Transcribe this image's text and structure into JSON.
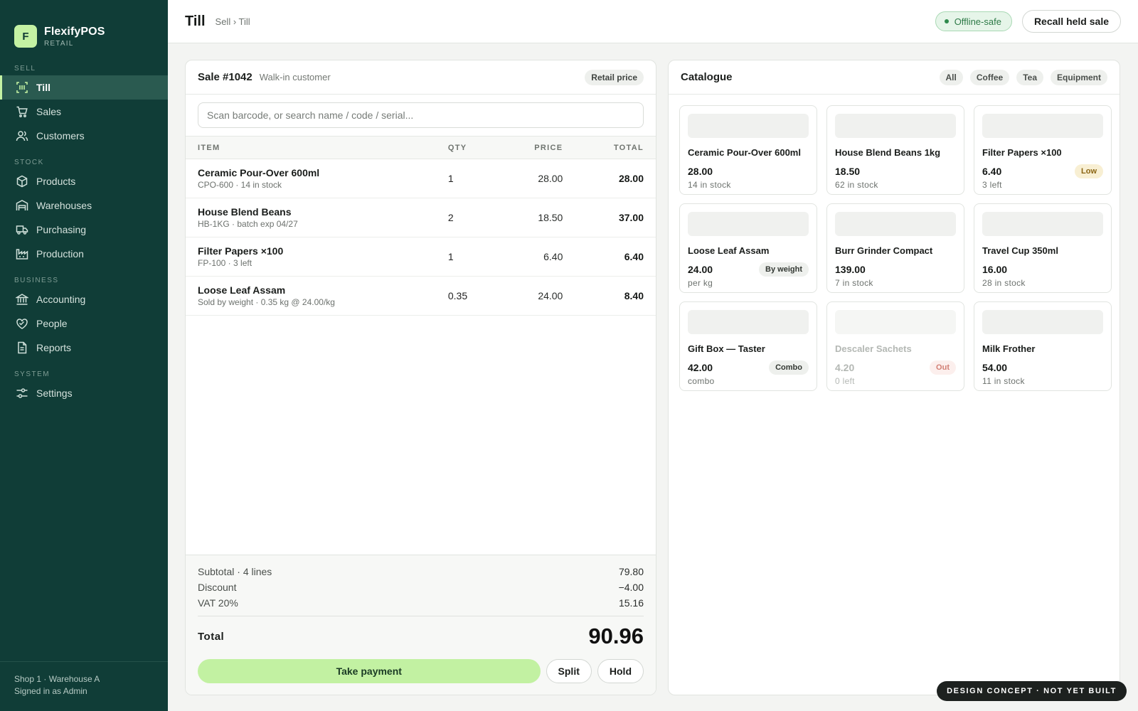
{
  "brand": {
    "initial": "F",
    "name": "FlexifyPOS",
    "sub": "RETAIL"
  },
  "sidebar": {
    "sections": [
      {
        "title": "SELL",
        "items": [
          {
            "label": "Till",
            "icon": "barcode-scan-icon",
            "active": true
          },
          {
            "label": "Sales",
            "icon": "cart-icon"
          },
          {
            "label": "Customers",
            "icon": "users-icon"
          }
        ]
      },
      {
        "title": "STOCK",
        "items": [
          {
            "label": "Products",
            "icon": "box-icon"
          },
          {
            "label": "Warehouses",
            "icon": "warehouse-icon"
          },
          {
            "label": "Purchasing",
            "icon": "truck-icon"
          },
          {
            "label": "Production",
            "icon": "factory-icon"
          }
        ]
      },
      {
        "title": "BUSINESS",
        "items": [
          {
            "label": "Accounting",
            "icon": "bank-icon"
          },
          {
            "label": "People",
            "icon": "handshake-icon"
          },
          {
            "label": "Reports",
            "icon": "report-icon"
          }
        ]
      },
      {
        "title": "SYSTEM",
        "items": [
          {
            "label": "Settings",
            "icon": "sliders-icon"
          }
        ]
      }
    ],
    "footer": {
      "location": "Shop 1 · Warehouse A",
      "user": "Signed in as Admin"
    }
  },
  "header": {
    "title": "Till",
    "breadcrumb": "Sell › Till",
    "status": "Offline-safe",
    "recall_label": "Recall held sale"
  },
  "sale": {
    "number": "Sale #1042",
    "customer": "Walk-in customer",
    "price_list": "Retail price",
    "search_placeholder": "Scan barcode, or search name / code / serial...",
    "columns": {
      "item": "ITEM",
      "qty": "QTY",
      "price": "PRICE",
      "total": "TOTAL"
    },
    "lines": [
      {
        "name": "Ceramic Pour-Over 600ml",
        "sub": "CPO-600 · 14 in stock",
        "qty": "1",
        "price": "28.00",
        "total": "28.00"
      },
      {
        "name": "House Blend Beans",
        "sub": "HB-1KG · batch exp 04/27",
        "qty": "2",
        "price": "18.50",
        "total": "37.00"
      },
      {
        "name": "Filter Papers ×100",
        "sub": "FP-100 · 3 left",
        "qty": "1",
        "price": "6.40",
        "total": "6.40"
      },
      {
        "name": "Loose Leaf Assam",
        "sub": "Sold by weight · 0.35 kg @ 24.00/kg",
        "qty": "0.35",
        "price": "24.00",
        "total": "8.40"
      }
    ],
    "summary": {
      "subtotal_label": "Subtotal · 4 lines",
      "subtotal": "79.80",
      "discount_label": "Discount",
      "discount": "−4.00",
      "vat_label": "VAT 20%",
      "vat": "15.16",
      "total_label": "Total",
      "total": "90.96"
    },
    "actions": {
      "pay": "Take payment",
      "split": "Split",
      "hold": "Hold"
    }
  },
  "catalogue": {
    "title": "Catalogue",
    "filters": [
      "All",
      "Coffee",
      "Tea",
      "Equipment"
    ],
    "products": [
      {
        "name": "Ceramic Pour-Over 600ml",
        "price": "28.00",
        "stock": "14 in stock",
        "tag": "",
        "tag_style": ""
      },
      {
        "name": "House Blend Beans 1kg",
        "price": "18.50",
        "stock": "62 in stock",
        "tag": "",
        "tag_style": ""
      },
      {
        "name": "Filter Papers ×100",
        "price": "6.40",
        "stock": "3 left",
        "tag": "Low",
        "tag_style": "low"
      },
      {
        "name": "Loose Leaf Assam",
        "price": "24.00",
        "stock": "per kg",
        "tag": "By weight",
        "tag_style": "neutral"
      },
      {
        "name": "Burr Grinder Compact",
        "price": "139.00",
        "stock": "7 in stock",
        "tag": "",
        "tag_style": ""
      },
      {
        "name": "Travel Cup 350ml",
        "price": "16.00",
        "stock": "28 in stock",
        "tag": "",
        "tag_style": ""
      },
      {
        "name": "Gift Box — Taster",
        "price": "42.00",
        "stock": "combo",
        "tag": "Combo",
        "tag_style": "neutral"
      },
      {
        "name": "Descaler Sachets",
        "price": "4.20",
        "stock": "0 left",
        "tag": "Out",
        "tag_style": "out",
        "disabled": true
      },
      {
        "name": "Milk Frother",
        "price": "54.00",
        "stock": "11 in stock",
        "tag": "",
        "tag_style": ""
      }
    ]
  },
  "concept_badge": "DESIGN CONCEPT · NOT YET BUILT"
}
